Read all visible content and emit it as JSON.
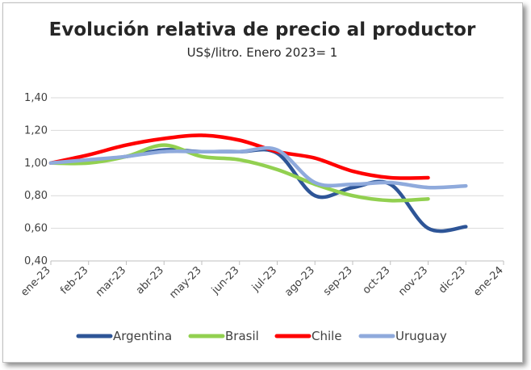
{
  "chart_data": {
    "type": "line",
    "title": "Evolución relativa de precio al productor",
    "subtitle": "US$/litro. Enero 2023= 1",
    "xlabel": "",
    "ylabel": "",
    "categories": [
      "ene-23",
      "feb-23",
      "mar-23",
      "abr-23",
      "may-23",
      "jun-23",
      "jul-23",
      "ago-23",
      "sep-23",
      "oct-23",
      "nov-23",
      "dic-23",
      "ene-24"
    ],
    "ylim": [
      0.4,
      1.4
    ],
    "yticks": [
      0.4,
      0.6,
      0.8,
      1.0,
      1.2,
      1.4
    ],
    "ytick_labels": [
      "0,40",
      "0,60",
      "0,80",
      "1,00",
      "1,20",
      "1,40"
    ],
    "grid": true,
    "legend_position": "bottom",
    "series": [
      {
        "name": "Argentina",
        "color": "#2e5597",
        "values": [
          1.0,
          1.01,
          1.04,
          1.08,
          1.07,
          1.07,
          1.06,
          0.8,
          0.85,
          0.87,
          0.6,
          0.61,
          null
        ]
      },
      {
        "name": "Brasil",
        "color": "#92d050",
        "values": [
          1.0,
          1.0,
          1.04,
          1.11,
          1.04,
          1.02,
          0.96,
          0.87,
          0.8,
          0.77,
          0.78,
          null,
          null
        ]
      },
      {
        "name": "Chile",
        "color": "#ff0000",
        "values": [
          1.0,
          1.05,
          1.11,
          1.15,
          1.17,
          1.14,
          1.07,
          1.03,
          0.95,
          0.91,
          0.91,
          null,
          null
        ]
      },
      {
        "name": "Uruguay",
        "color": "#8faadc",
        "values": [
          1.0,
          1.02,
          1.04,
          1.07,
          1.07,
          1.07,
          1.08,
          0.88,
          0.87,
          0.88,
          0.85,
          0.86,
          null
        ]
      }
    ]
  }
}
